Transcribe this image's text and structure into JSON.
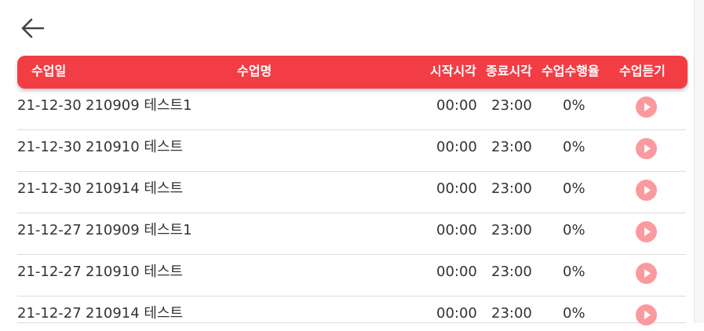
{
  "header": {
    "back_icon": "arrow-left-icon",
    "columns": {
      "date": "수업일",
      "name": "수업명",
      "start": "시작시각",
      "end": "종료시각",
      "rate": "수업수행율",
      "listen": "수업듣기"
    }
  },
  "colors": {
    "accent": "#f23d45",
    "play_button": "#fa9a9e"
  },
  "rows": [
    {
      "date": "21-12-30",
      "name": "210909 테스트1",
      "start": "00:00",
      "end": "23:00",
      "rate": "0%",
      "action_icon": "play-icon"
    },
    {
      "date": "21-12-30",
      "name": "210910 테스트",
      "start": "00:00",
      "end": "23:00",
      "rate": "0%",
      "action_icon": "play-icon"
    },
    {
      "date": "21-12-30",
      "name": "210914 테스트",
      "start": "00:00",
      "end": "23:00",
      "rate": "0%",
      "action_icon": "play-icon"
    },
    {
      "date": "21-12-27",
      "name": "210909 테스트1",
      "start": "00:00",
      "end": "23:00",
      "rate": "0%",
      "action_icon": "play-icon"
    },
    {
      "date": "21-12-27",
      "name": "210910 테스트",
      "start": "00:00",
      "end": "23:00",
      "rate": "0%",
      "action_icon": "play-icon"
    },
    {
      "date": "21-12-27",
      "name": "210914 테스트",
      "start": "00:00",
      "end": "23:00",
      "rate": "0%",
      "action_icon": "play-icon"
    }
  ]
}
